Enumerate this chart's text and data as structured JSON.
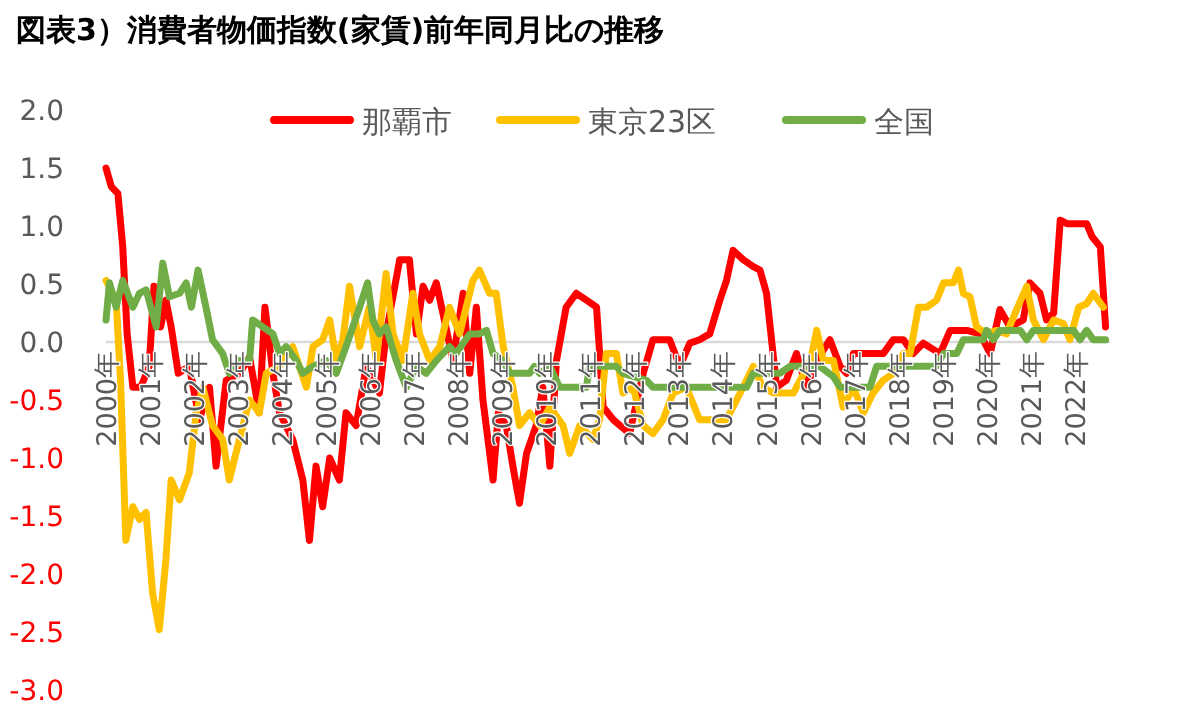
{
  "chart_data": {
    "type": "line",
    "title": "図表3）消費者物価指数(家賃)前年同月比の推移",
    "xlim": [
      2000,
      2022.8
    ],
    "xticks": [
      {
        "value": 2000,
        "label": "2000年"
      },
      {
        "value": 2001,
        "label": "2001年"
      },
      {
        "value": 2002,
        "label": "2002年"
      },
      {
        "value": 2003,
        "label": "2003年"
      },
      {
        "value": 2004,
        "label": "2004年"
      },
      {
        "value": 2005,
        "label": "2005年"
      },
      {
        "value": 2006,
        "label": "2006年"
      },
      {
        "value": 2007,
        "label": "2007年"
      },
      {
        "value": 2008,
        "label": "2008年"
      },
      {
        "value": 2009,
        "label": "2009年"
      },
      {
        "value": 2010,
        "label": "2010年"
      },
      {
        "value": 2011,
        "label": "2011年"
      },
      {
        "value": 2012,
        "label": "2012年"
      },
      {
        "value": 2013,
        "label": "2013年"
      },
      {
        "value": 2014,
        "label": "2014年"
      },
      {
        "value": 2015,
        "label": "2015年"
      },
      {
        "value": 2016,
        "label": "2016年"
      },
      {
        "value": 2017,
        "label": "2017年"
      },
      {
        "value": 2018,
        "label": "2018年"
      },
      {
        "value": 2019,
        "label": "2019年"
      },
      {
        "value": 2020,
        "label": "2020年"
      },
      {
        "value": 2021,
        "label": "2021年"
      },
      {
        "value": 2022,
        "label": "2022年"
      }
    ],
    "ylim": [
      -3,
      2
    ],
    "yticks": [
      {
        "value": 2,
        "label": "2.0"
      },
      {
        "value": 1.5,
        "label": "1.5"
      },
      {
        "value": 1,
        "label": "1.0"
      },
      {
        "value": 0.5,
        "label": "0.5"
      },
      {
        "value": 0,
        "label": "0.0"
      },
      {
        "value": -0.5,
        "label": "-0.5"
      },
      {
        "value": -1,
        "label": "-1.0"
      },
      {
        "value": -1.5,
        "label": "-1.5"
      },
      {
        "value": -2,
        "label": "-2.0"
      },
      {
        "value": -2.5,
        "label": "-2.5"
      },
      {
        "value": -3,
        "label": "-3.0"
      }
    ],
    "grid": false,
    "legend": "top",
    "marker": "none",
    "line_style": "solid",
    "series": [
      {
        "name": "那覇市",
        "color": "#ff0000",
        "x": [
          2000.0,
          2000.12,
          2000.27,
          2000.38,
          2000.48,
          2000.61,
          2000.79,
          2000.98,
          2001.09,
          2001.24,
          2001.36,
          2001.48,
          2001.64,
          2001.89,
          2002.12,
          2002.35,
          2002.5,
          2002.73,
          2003.03,
          2003.26,
          2003.48,
          2003.61,
          2003.79,
          2003.94,
          2004.24,
          2004.47,
          2004.62,
          2004.77,
          2004.92,
          2005.08,
          2005.3,
          2005.45,
          2005.68,
          2005.91,
          2006.21,
          2006.36,
          2006.67,
          2006.89,
          2007.05,
          2007.2,
          2007.35,
          2007.5,
          2007.65,
          2007.88,
          2008.11,
          2008.26,
          2008.41,
          2008.56,
          2008.79,
          2008.91,
          2009.09,
          2009.24,
          2009.39,
          2009.55,
          2009.77,
          2009.92,
          2010.08,
          2010.23,
          2010.45,
          2010.68,
          2010.91,
          2011.14,
          2011.29,
          2011.52,
          2011.89,
          2012.2,
          2012.42,
          2012.8,
          2013.03,
          2013.26,
          2013.48,
          2013.71,
          2013.94,
          2014.09,
          2014.24,
          2014.47,
          2014.7,
          2014.85,
          2015.0,
          2015.23,
          2015.45,
          2015.68,
          2015.91,
          2016.14,
          2016.44,
          2016.67,
          2016.82,
          2016.97,
          2017.65,
          2017.88,
          2018.11,
          2018.33,
          2018.56,
          2018.94,
          2019.17,
          2019.55,
          2019.85,
          2020.08,
          2020.3,
          2020.53,
          2020.83,
          2020.98,
          2021.21,
          2021.36,
          2021.52,
          2021.67,
          2021.82,
          2022.27,
          2022.39,
          2022.58,
          2022.7
        ],
        "values": [
          1.5,
          1.34,
          1.28,
          0.82,
          0.07,
          -0.39,
          -0.39,
          -0.21,
          0.48,
          0.13,
          0.36,
          0.13,
          -0.27,
          -0.21,
          -0.67,
          -0.39,
          -1.07,
          -0.33,
          -0.27,
          -0.13,
          -0.61,
          0.3,
          -0.27,
          -0.61,
          -0.84,
          -1.19,
          -1.71,
          -1.07,
          -1.42,
          -1.0,
          -1.19,
          -0.61,
          -0.72,
          -0.21,
          -0.44,
          0.07,
          0.71,
          0.71,
          0.07,
          0.48,
          0.36,
          0.51,
          0.25,
          -0.16,
          0.42,
          -0.27,
          0.3,
          -0.5,
          -1.19,
          -0.61,
          -0.72,
          -1.07,
          -1.39,
          -0.96,
          -0.72,
          -0.39,
          -1.07,
          -0.16,
          0.3,
          0.42,
          0.36,
          0.3,
          -0.56,
          -0.67,
          -0.79,
          -0.27,
          0.02,
          0.02,
          -0.21,
          -0.01,
          0.02,
          0.07,
          0.36,
          0.53,
          0.79,
          0.71,
          0.65,
          0.62,
          0.42,
          -0.39,
          -0.33,
          -0.1,
          -0.39,
          -0.16,
          0.02,
          -0.21,
          -0.27,
          -0.1,
          -0.1,
          0.02,
          0.02,
          -0.1,
          -0.01,
          -0.1,
          0.1,
          0.1,
          0.07,
          -0.1,
          0.28,
          0.13,
          0.19,
          0.51,
          0.42,
          0.19,
          0.25,
          1.05,
          1.02,
          1.02,
          0.91,
          0.82,
          0.13
        ]
      },
      {
        "name": "東京23区",
        "color": "#ffc000",
        "x": [
          2000.0,
          2000.23,
          2000.33,
          2000.45,
          2000.61,
          2000.76,
          2000.91,
          2001.06,
          2001.21,
          2001.36,
          2001.48,
          2001.67,
          2001.89,
          2002.05,
          2002.2,
          2002.42,
          2002.65,
          2002.8,
          2002.95,
          2003.26,
          2003.48,
          2003.64,
          2003.94,
          2004.24,
          2004.55,
          2004.7,
          2004.92,
          2005.08,
          2005.23,
          2005.38,
          2005.53,
          2005.76,
          2005.98,
          2006.14,
          2006.36,
          2006.52,
          2006.74,
          2006.97,
          2007.12,
          2007.35,
          2007.58,
          2007.8,
          2008.03,
          2008.33,
          2008.48,
          2008.71,
          2008.86,
          2009.02,
          2009.24,
          2009.39,
          2009.62,
          2009.85,
          2010.08,
          2010.38,
          2010.53,
          2010.76,
          2011.06,
          2011.21,
          2011.36,
          2011.59,
          2011.74,
          2011.97,
          2012.2,
          2012.42,
          2012.65,
          2012.88,
          2013.18,
          2013.48,
          2014.09,
          2014.47,
          2014.7,
          2014.92,
          2015.15,
          2015.61,
          2016.0,
          2016.14,
          2016.29,
          2016.52,
          2016.74,
          2016.97,
          2017.2,
          2017.42,
          2017.65,
          2017.88,
          2018.11,
          2018.26,
          2018.45,
          2018.64,
          2018.86,
          2019.02,
          2019.24,
          2019.36,
          2019.47,
          2019.62,
          2019.77,
          2020.0,
          2020.23,
          2020.45,
          2020.68,
          2020.91,
          2021.06,
          2021.29,
          2021.52,
          2021.74,
          2021.89,
          2022.09,
          2022.27,
          2022.42,
          2022.65
        ],
        "values": [
          0.53,
          0.36,
          -0.33,
          -1.71,
          -1.42,
          -1.53,
          -1.47,
          -2.17,
          -2.48,
          -1.88,
          -1.19,
          -1.36,
          -1.13,
          -0.61,
          -0.39,
          -0.72,
          -0.84,
          -1.19,
          -0.96,
          -0.5,
          -0.61,
          -0.27,
          -0.21,
          -0.04,
          -0.39,
          -0.04,
          0.02,
          0.19,
          -0.16,
          0.02,
          0.48,
          -0.04,
          0.3,
          -0.16,
          0.59,
          0.07,
          -0.16,
          0.42,
          0.07,
          -0.16,
          -0.04,
          0.3,
          0.07,
          0.53,
          0.62,
          0.42,
          0.42,
          -0.04,
          -0.39,
          -0.72,
          -0.61,
          -0.72,
          -0.56,
          -0.72,
          -0.96,
          -0.72,
          -0.84,
          -0.67,
          -0.1,
          -0.1,
          -0.44,
          -0.39,
          -0.72,
          -0.79,
          -0.67,
          -0.44,
          -0.39,
          -0.67,
          -0.67,
          -0.39,
          -0.21,
          -0.39,
          -0.44,
          -0.44,
          -0.16,
          0.1,
          -0.16,
          -0.16,
          -0.56,
          -0.39,
          -0.61,
          -0.44,
          -0.33,
          -0.27,
          -0.1,
          -0.1,
          0.3,
          0.3,
          0.36,
          0.51,
          0.51,
          0.62,
          0.42,
          0.39,
          0.13,
          0.07,
          0.1,
          0.07,
          0.28,
          0.48,
          0.19,
          0.02,
          0.19,
          0.16,
          0.02,
          0.3,
          0.33,
          0.42,
          0.3
        ]
      },
      {
        "name": "全国",
        "color": "#70ad47",
        "x": [
          2000.0,
          2000.08,
          2000.23,
          2000.38,
          2000.61,
          2000.76,
          2000.91,
          2001.14,
          2001.29,
          2001.44,
          2001.67,
          2001.82,
          2001.94,
          2002.09,
          2002.27,
          2002.42,
          2002.65,
          2002.8,
          2003.03,
          2003.26,
          2003.33,
          2003.56,
          2003.79,
          2003.94,
          2004.09,
          2004.32,
          2004.47,
          2004.7,
          2005.0,
          2005.23,
          2005.45,
          2005.76,
          2005.94,
          2006.06,
          2006.21,
          2006.36,
          2006.59,
          2006.82,
          2007.05,
          2007.27,
          2007.5,
          2007.8,
          2007.95,
          2008.26,
          2008.48,
          2008.64,
          2008.79,
          2009.02,
          2009.17,
          2009.62,
          2009.73,
          2009.85,
          2010.08,
          2010.3,
          2010.91,
          2010.98,
          2011.59,
          2011.74,
          2012.27,
          2012.42,
          2014.55,
          2014.7,
          2015.3,
          2015.53,
          2016.21,
          2016.52,
          2016.67,
          2017.35,
          2017.5,
          2018.86,
          2019.02,
          2019.32,
          2019.47,
          2019.92,
          2020.0,
          2020.15,
          2020.3,
          2020.76,
          2020.91,
          2021.06,
          2021.97,
          2022.12,
          2022.27,
          2022.42,
          2022.7
        ],
        "values": [
          0.19,
          0.51,
          0.3,
          0.53,
          0.3,
          0.42,
          0.45,
          0.13,
          0.68,
          0.39,
          0.42,
          0.51,
          0.3,
          0.62,
          0.3,
          0.02,
          -0.1,
          -0.27,
          -0.16,
          -0.16,
          0.19,
          0.13,
          0.07,
          -0.1,
          -0.04,
          -0.16,
          -0.27,
          -0.21,
          -0.16,
          -0.27,
          -0.04,
          0.3,
          0.51,
          0.19,
          0.07,
          0.13,
          -0.16,
          -0.39,
          -0.21,
          -0.27,
          -0.16,
          -0.04,
          -0.1,
          0.07,
          0.07,
          0.1,
          -0.1,
          -0.16,
          -0.27,
          -0.27,
          -0.21,
          -0.27,
          -0.21,
          -0.39,
          -0.39,
          -0.21,
          -0.21,
          -0.27,
          -0.33,
          -0.39,
          -0.39,
          -0.27,
          -0.27,
          -0.21,
          -0.21,
          -0.3,
          -0.39,
          -0.39,
          -0.21,
          -0.21,
          -0.1,
          -0.1,
          0.02,
          0.02,
          0.1,
          0.02,
          0.1,
          0.1,
          0.02,
          0.1,
          0.1,
          0.02,
          0.1,
          0.02,
          0.02
        ]
      }
    ]
  }
}
